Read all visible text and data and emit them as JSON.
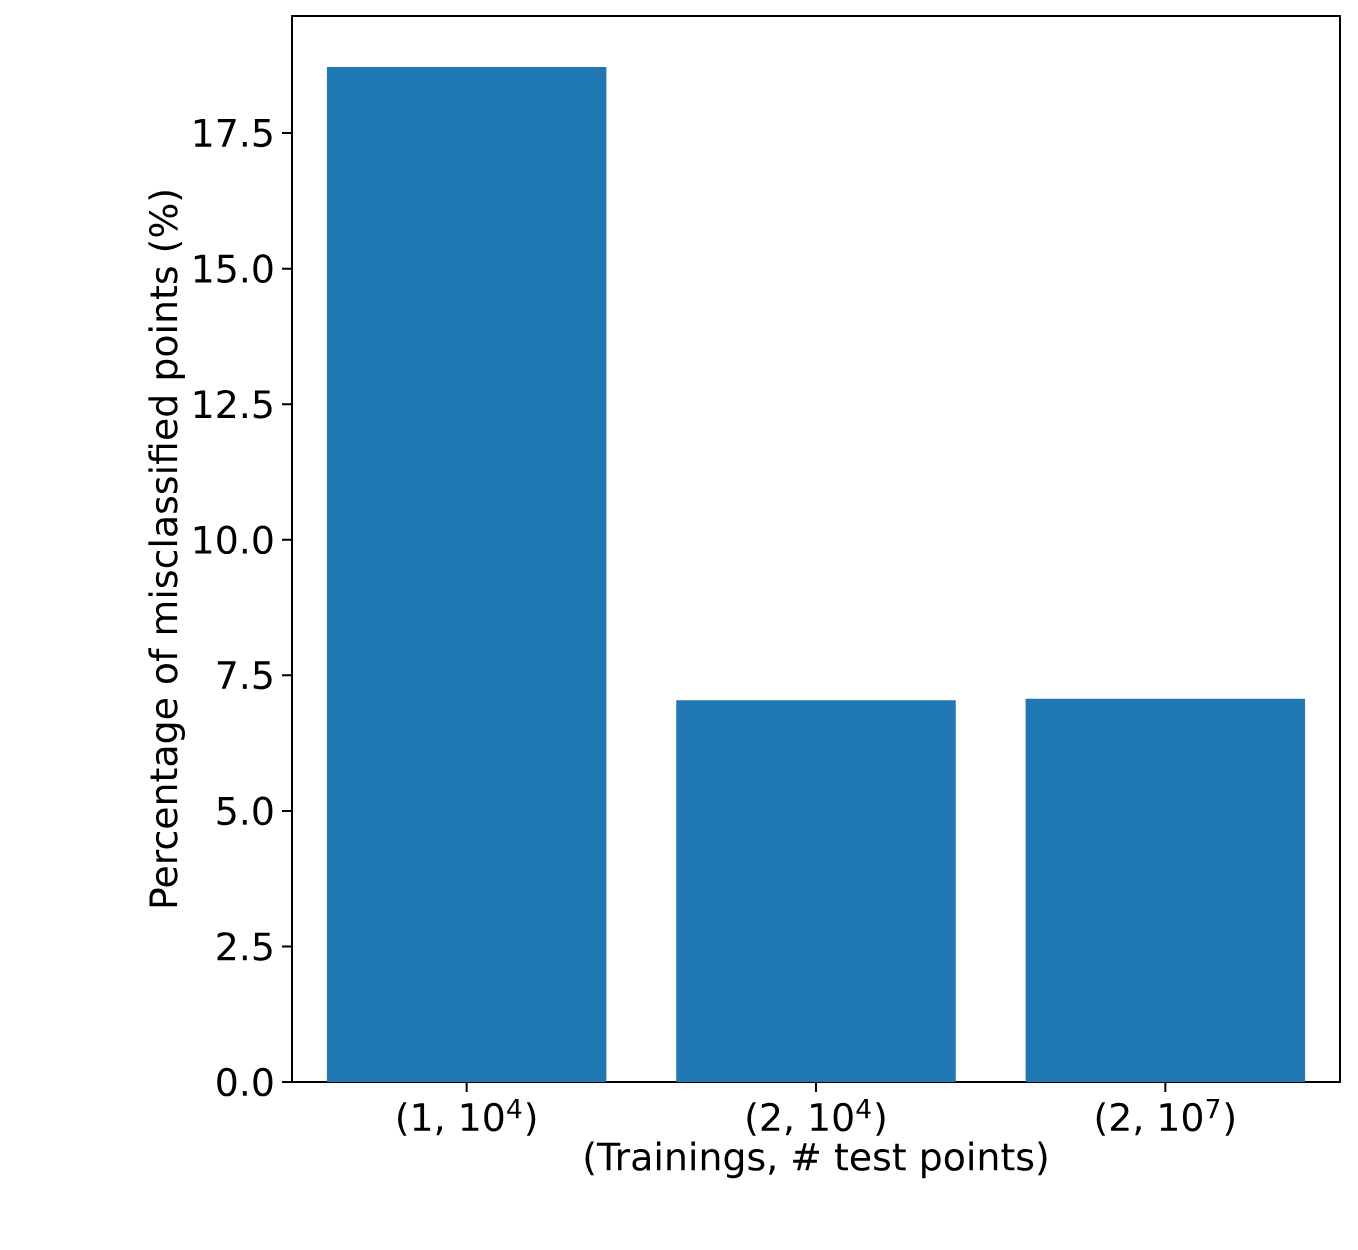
{
  "chart_data": {
    "type": "bar",
    "xlabel": "(Trainings, # test points)",
    "ylabel": "Percentage of misclassified points (%)",
    "categories": [
      "(1, 10$^{4}$)",
      "(2, 10$^{4}$)",
      "(2, 10$^{7}$)"
    ],
    "values": [
      18.72,
      7.04,
      7.07
    ],
    "color": "#1f77b4",
    "ylim": [
      0,
      19.66
    ],
    "yticks": [
      {
        "value": 0,
        "label": "0.0"
      },
      {
        "value": 2.5,
        "label": "2.5"
      },
      {
        "value": 5,
        "label": "5.0"
      },
      {
        "value": 7.5,
        "label": "7.5"
      },
      {
        "value": 10,
        "label": "10.0"
      },
      {
        "value": 12.5,
        "label": "12.5"
      },
      {
        "value": 15,
        "label": "15.0"
      },
      {
        "value": 17.5,
        "label": "17.5"
      }
    ],
    "grid": false
  }
}
